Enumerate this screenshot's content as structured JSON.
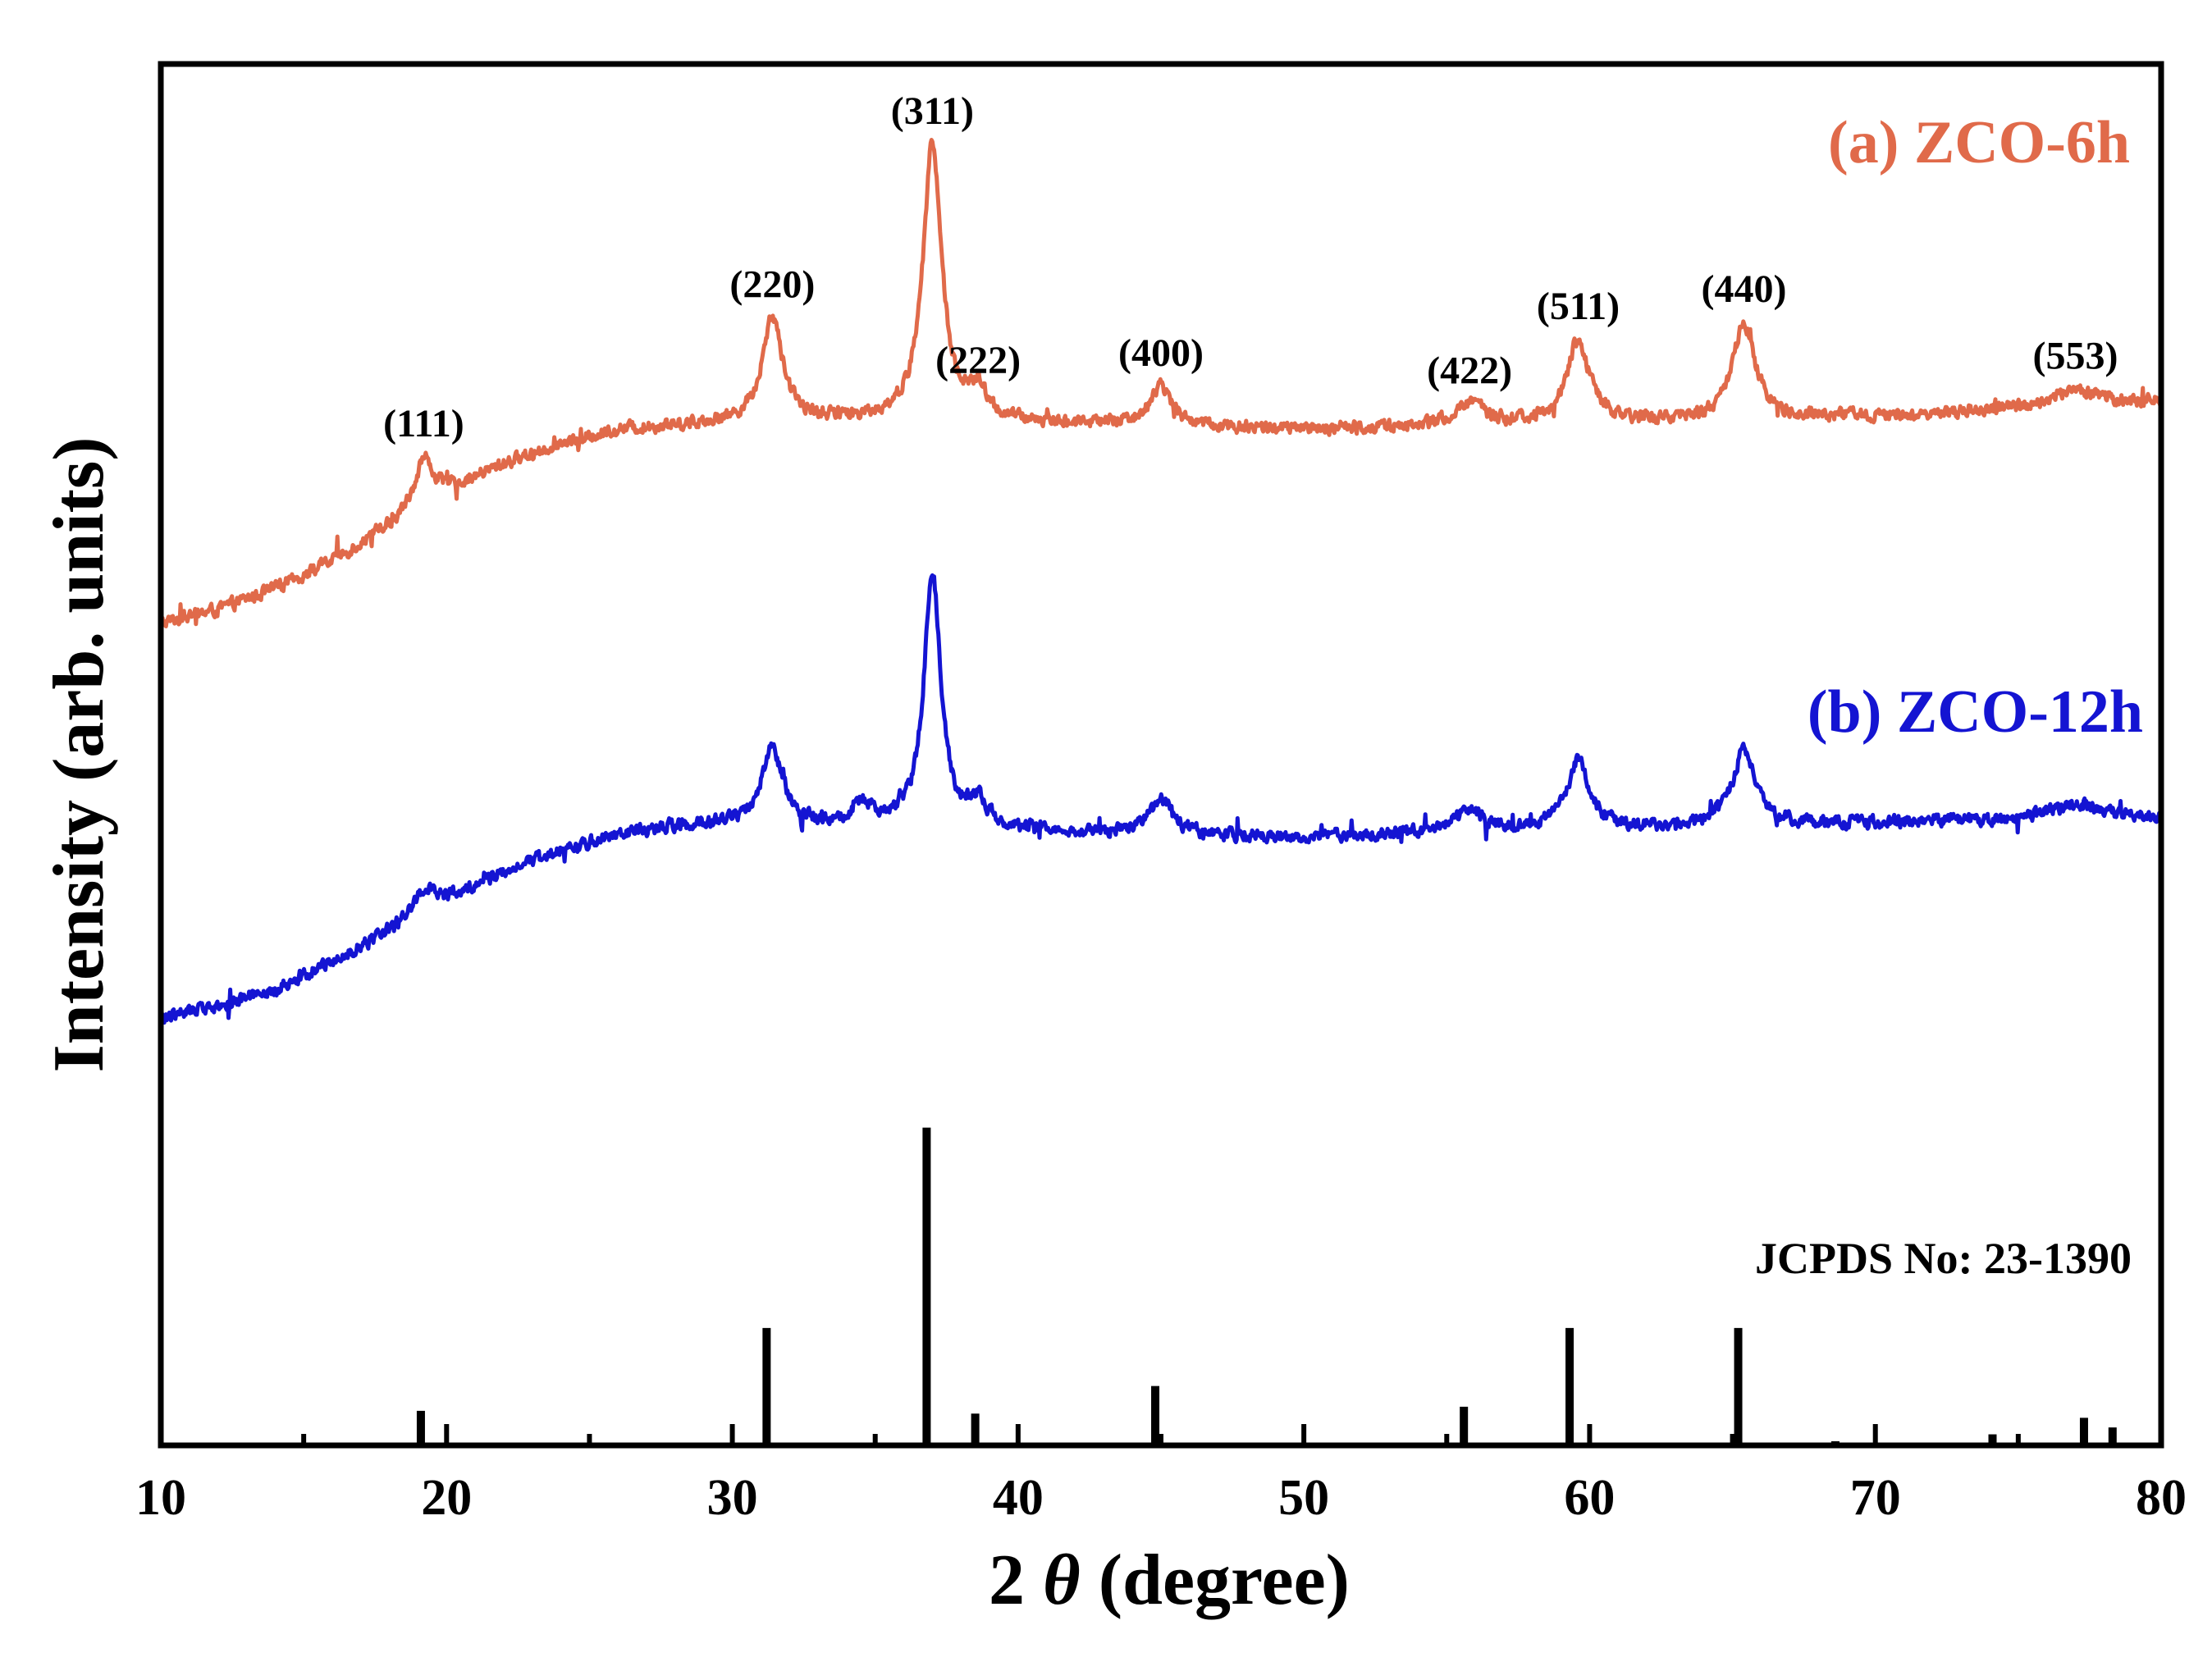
{
  "chart_data": {
    "type": "line",
    "title": "",
    "xlabel": "2θ (degree)",
    "xlabel_parts": {
      "prefix": "2",
      "symbol": "θ",
      "suffix": "(degree)"
    },
    "ylabel": "Intensity (arb. units)",
    "xlim": [
      10,
      80
    ],
    "ylim": [
      0,
      100
    ],
    "x_ticks": [
      10,
      20,
      30,
      40,
      50,
      60,
      70,
      80
    ],
    "minor_tick_step": 5,
    "y_ticks_shown": false,
    "grid": false,
    "series": [
      {
        "name": "(a) ZCO-6h",
        "color": "#e06a4a",
        "legend_position": "top-right",
        "baseline": [
          [
            10,
            59.5
          ],
          [
            12,
            60.5
          ],
          [
            14,
            62.0
          ],
          [
            16,
            64.0
          ],
          [
            18,
            66.5
          ],
          [
            20,
            69.0
          ],
          [
            22,
            71.0
          ],
          [
            24,
            72.5
          ],
          [
            26,
            73.5
          ],
          [
            28,
            73.8
          ],
          [
            30,
            74.0
          ],
          [
            35,
            74.2
          ],
          [
            40,
            74.0
          ],
          [
            45,
            73.8
          ],
          [
            50,
            73.5
          ],
          [
            55,
            73.8
          ],
          [
            60,
            74.0
          ],
          [
            65,
            74.2
          ],
          [
            70,
            74.5
          ],
          [
            75,
            75.0
          ],
          [
            80,
            75.5
          ]
        ],
        "peaks": [
          {
            "two_theta": 19.2,
            "height": 3.5,
            "width": 0.5,
            "hkl": "(111)"
          },
          {
            "two_theta": 31.4,
            "height": 7.5,
            "width": 0.55,
            "hkl": "(220)"
          },
          {
            "two_theta": 37.0,
            "height": 20.0,
            "width": 0.5,
            "hkl": "(311)"
          },
          {
            "two_theta": 38.6,
            "height": 2.0,
            "width": 0.45,
            "hkl": "(222)"
          },
          {
            "two_theta": 45.0,
            "height": 2.8,
            "width": 0.6,
            "hkl": "(400)"
          },
          {
            "two_theta": 55.8,
            "height": 1.5,
            "width": 0.8,
            "hkl": "(422)"
          },
          {
            "two_theta": 59.6,
            "height": 6.0,
            "width": 0.6,
            "hkl": "(511)"
          },
          {
            "two_theta": 65.4,
            "height": 7.0,
            "width": 0.6,
            "hkl": "(440)"
          },
          {
            "two_theta": 77.0,
            "height": 1.2,
            "width": 1.2,
            "hkl": "(553)"
          }
        ],
        "noise": 0.7
      },
      {
        "name": "(b) ZCO-12h",
        "color": "#1414d2",
        "legend_position": "center-right",
        "baseline": [
          [
            10,
            31.0
          ],
          [
            12,
            31.8
          ],
          [
            14,
            33.0
          ],
          [
            16,
            35.0
          ],
          [
            18,
            37.2
          ],
          [
            20,
            39.5
          ],
          [
            22,
            41.5
          ],
          [
            24,
            43.0
          ],
          [
            26,
            44.2
          ],
          [
            28,
            44.8
          ],
          [
            30,
            45.0
          ],
          [
            35,
            44.8
          ],
          [
            40,
            44.5
          ],
          [
            45,
            44.2
          ],
          [
            50,
            44.0
          ],
          [
            55,
            44.3
          ],
          [
            60,
            44.6
          ],
          [
            65,
            44.8
          ],
          [
            70,
            45.0
          ],
          [
            75,
            45.3
          ],
          [
            80,
            45.5
          ]
        ],
        "peaks": [
          {
            "two_theta": 19.2,
            "height": 1.8,
            "width": 0.5
          },
          {
            "two_theta": 31.4,
            "height": 5.5,
            "width": 0.55
          },
          {
            "two_theta": 34.6,
            "height": 1.5,
            "width": 0.5
          },
          {
            "two_theta": 37.0,
            "height": 18.5,
            "width": 0.45
          },
          {
            "two_theta": 38.6,
            "height": 1.8,
            "width": 0.45
          },
          {
            "two_theta": 45.0,
            "height": 2.5,
            "width": 0.6
          },
          {
            "two_theta": 55.8,
            "height": 1.5,
            "width": 0.8
          },
          {
            "two_theta": 59.6,
            "height": 5.0,
            "width": 0.6
          },
          {
            "two_theta": 65.4,
            "height": 5.5,
            "width": 0.6
          },
          {
            "two_theta": 77.0,
            "height": 1.0,
            "width": 1.2
          }
        ],
        "noise": 0.7
      }
    ],
    "reference": {
      "name": "JCPDS No: 23-1390",
      "color": "#000000",
      "base": 0,
      "lines": [
        {
          "two_theta": 19.1,
          "intensity": 2.5
        },
        {
          "two_theta": 31.2,
          "intensity": 8.5
        },
        {
          "two_theta": 36.8,
          "intensity": 23.0
        },
        {
          "two_theta": 38.5,
          "intensity": 2.3
        },
        {
          "two_theta": 44.8,
          "intensity": 4.3
        },
        {
          "two_theta": 55.6,
          "intensity": 2.8
        },
        {
          "two_theta": 59.3,
          "intensity": 8.5
        },
        {
          "two_theta": 65.2,
          "intensity": 8.5
        },
        {
          "two_theta": 68.6,
          "intensity": 0.3
        },
        {
          "two_theta": 74.1,
          "intensity": 0.8
        },
        {
          "two_theta": 77.3,
          "intensity": 2.0
        },
        {
          "two_theta": 78.3,
          "intensity": 1.3
        }
      ]
    }
  }
}
